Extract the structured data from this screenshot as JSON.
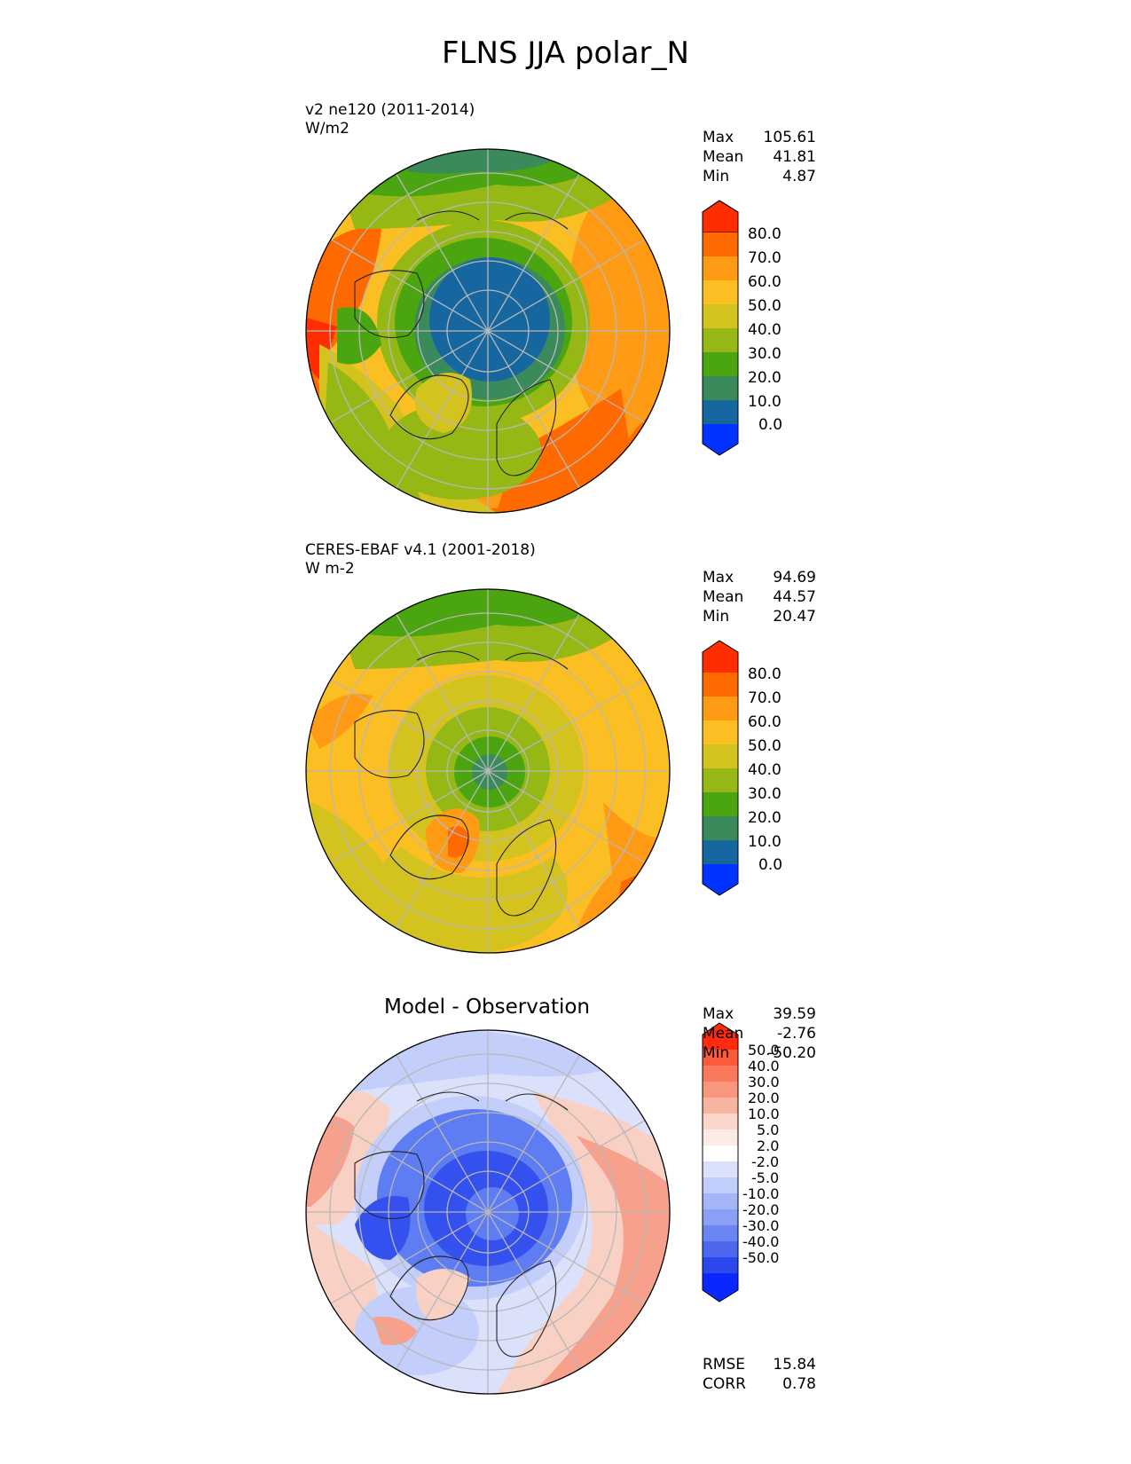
{
  "figure_title": "FLNS JJA polar_N",
  "panels": [
    {
      "title": "v2 ne120 (2011-2014)",
      "units": "W/m2",
      "stats": {
        "max": "105.61",
        "mean": "41.81",
        "min": "4.87"
      }
    },
    {
      "title": "CERES-EBAF v4.1 (2001-2018)",
      "units": "W m-2",
      "stats": {
        "max": "94.69",
        "mean": "44.57",
        "min": "20.47"
      }
    },
    {
      "center_title": "Model - Observation",
      "stats": {
        "max": "39.59",
        "mean": "-2.76",
        "min": "-50.20"
      },
      "metrics": {
        "rmse": "15.84",
        "corr": "0.78"
      }
    }
  ],
  "labels": {
    "max": "Max",
    "mean": "Mean",
    "min": "Min",
    "rmse": "RMSE",
    "corr": "CORR"
  },
  "colorbars": {
    "main": {
      "ticks": [
        "80.0",
        "70.0",
        "60.0",
        "50.0",
        "40.0",
        "30.0",
        "20.0",
        "10.0",
        "0.0"
      ],
      "colors": [
        "#ff2d00",
        "#ff6a00",
        "#ff9a14",
        "#fbbf24",
        "#d4c31f",
        "#96b815",
        "#4aa510",
        "#3a8a5c",
        "#1666a0",
        "#0033ff"
      ]
    },
    "diff": {
      "ticks": [
        "50.0",
        "40.0",
        "30.0",
        "20.0",
        "10.0",
        "5.0",
        "2.0",
        "-2.0",
        "-5.0",
        "-10.0",
        "-20.0",
        "-30.0",
        "-40.0",
        "-50.0"
      ],
      "colors": [
        "#ff2a10",
        "#fd5a3c",
        "#f9795c",
        "#f8967e",
        "#f7b4a1",
        "#f9d5ca",
        "#fbeae5",
        "#ffffff",
        "#dbe1fb",
        "#c1cdfa",
        "#a5b6f8",
        "#8a9ff6",
        "#6b84f3",
        "#4d68ef",
        "#2c47ec",
        "#0a27ff"
      ]
    }
  },
  "map_colors": {
    "orange_red": "#ff6a00",
    "red": "#ff2d00",
    "orange": "#ff9a14",
    "gold": "#fbbf24",
    "olive_yellow": "#d4c31f",
    "yellow_green": "#96b815",
    "green": "#4aa510",
    "teal": "#3a8a5c",
    "blue": "#1666a0",
    "diff_red": "#f7a08c",
    "diff_pink": "#f9d0c4",
    "diff_lightblue": "#c3cffa",
    "diff_blue": "#5f7df2",
    "diff_darkblue": "#3450ee",
    "grid": "#b8b8b8",
    "coast": "#222222"
  }
}
